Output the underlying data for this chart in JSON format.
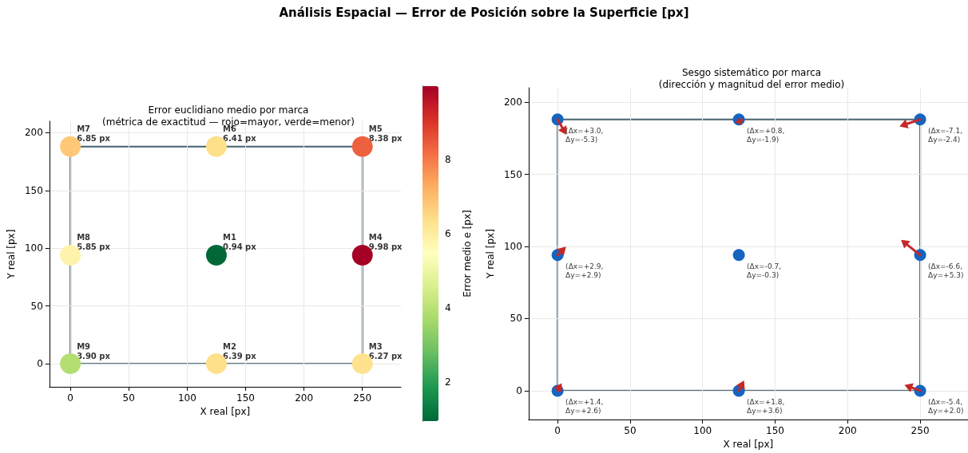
{
  "chart_data": [
    {
      "type": "scatter",
      "title": "Análisis Espacial — Error de Posición sobre la Superficie [px]",
      "subtitle": "Error euclidiano medio por marca\n(métrica de exactitud — rojo=mayor, verde=menor)",
      "xlabel": "X real [px]",
      "ylabel": "Y real [px]",
      "clabel": "Error medio e [px]",
      "xlim": [
        -18,
        283
      ],
      "ylim": [
        -20,
        210
      ],
      "xticks": [
        0,
        50,
        100,
        150,
        200,
        250
      ],
      "yticks": [
        0,
        50,
        100,
        150,
        200
      ],
      "clim": [
        0.94,
        9.98
      ],
      "cticks": [
        2,
        4,
        6,
        8
      ],
      "grid": true,
      "marker": "circle",
      "series": [
        {
          "x": [
            125,
            125,
            250,
            250,
            250,
            125,
            0,
            0,
            0
          ],
          "values": [
            94,
            0,
            0,
            94,
            188,
            188,
            188,
            94,
            0
          ],
          "colors": [
            "#006837",
            "#fee08b",
            "#fee28e",
            "#a50026",
            "#ee613e",
            "#fedf8a",
            "#fec877",
            "#fff2aa",
            "#b3df72"
          ]
        }
      ],
      "annotations": [
        {
          "text": "M1\n0.94 px",
          "x": 125,
          "y": 94
        },
        {
          "text": "M2\n6.39 px",
          "x": 125,
          "y": 0
        },
        {
          "text": "M3\n6.27 px",
          "x": 250,
          "y": 0
        },
        {
          "text": "M4\n9.98 px",
          "x": 250,
          "y": 94
        },
        {
          "text": "M5\n8.38 px",
          "x": 250,
          "y": 188
        },
        {
          "text": "M6\n6.41 px",
          "x": 125,
          "y": 188
        },
        {
          "text": "M7\n6.85 px",
          "x": 0,
          "y": 188
        },
        {
          "text": "M8\n5.85 px",
          "x": 0,
          "y": 94
        },
        {
          "text": "M9\n3.90 px",
          "x": 0,
          "y": 0
        }
      ]
    },
    {
      "type": "scatter",
      "subtitle": "Sesgo sistemático por marca\n(dirección y magnitud del error medio)",
      "xlabel": "X real [px]",
      "ylabel": "Y real [px]",
      "xlim": [
        -20,
        283
      ],
      "ylim": [
        -20,
        210
      ],
      "xticks": [
        0,
        50,
        100,
        150,
        200,
        250
      ],
      "yticks": [
        0,
        50,
        100,
        150,
        200
      ],
      "grid": true,
      "marker": "circle",
      "series": [
        {
          "color": "#1565c0",
          "x": [
            0,
            125,
            250,
            0,
            125,
            250,
            0,
            125,
            250
          ],
          "values": [
            188,
            188,
            188,
            94,
            94,
            94,
            0,
            0,
            0
          ]
        }
      ],
      "annotations": [
        {
          "text": "(Δx=+3.0,\nΔy=-5.3)",
          "x": 0,
          "y": 188
        },
        {
          "text": "(Δx=+0.8,\nΔy=-1.9)",
          "x": 125,
          "y": 188
        },
        {
          "text": "(Δx=-7.1,\nΔy=-2.4)",
          "x": 250,
          "y": 188
        },
        {
          "text": "(Δx=+2.9,\nΔy=+2.9)",
          "x": 0,
          "y": 94
        },
        {
          "text": "(Δx=-0.7,\nΔy=-0.3)",
          "x": 125,
          "y": 94
        },
        {
          "text": "(Δx=-6.6,\nΔy=+5.3)",
          "x": 250,
          "y": 94
        },
        {
          "text": "(Δx=+1.4,\nΔy=+2.6)",
          "x": 0,
          "y": 0
        },
        {
          "text": "(Δx=+1.8,\nΔy=+3.6)",
          "x": 125,
          "y": 0
        },
        {
          "text": "(Δx=-5.4,\nΔy=+2.0)",
          "x": 250,
          "y": 0
        }
      ]
    }
  ]
}
